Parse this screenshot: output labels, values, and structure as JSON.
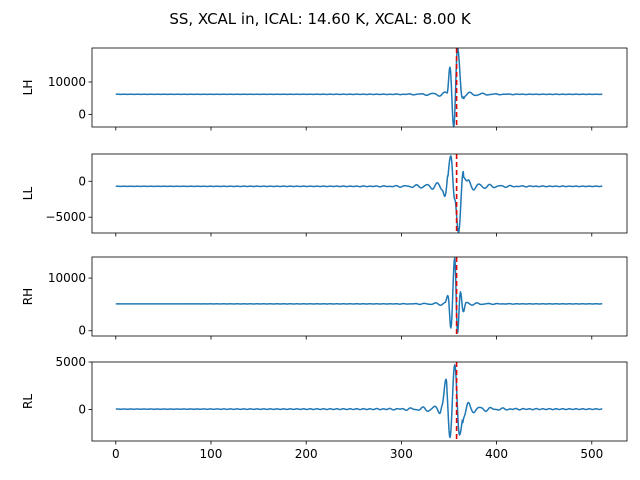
{
  "chart_data": {
    "type": "line",
    "title": "SS, XCAL in, ICAL: 14.60 K, XCAL: 8.00 K",
    "x_ticks": [
      0,
      100,
      200,
      300,
      400,
      500
    ],
    "xlim": [
      -25,
      537
    ],
    "x_range": [
      0,
      511
    ],
    "marker_x": 358,
    "line_color": "#1f77b4",
    "marker_color": "#e00000",
    "panels": [
      {
        "ylabel": "LH",
        "ylim": [
          -3900,
          20500
        ],
        "y_ticks": [
          0,
          10000
        ],
        "y_tick_labels": [
          "0",
          "10000"
        ],
        "baseline": 6200,
        "center": 357,
        "peaks": [
          {
            "x": 351,
            "y": 14500
          },
          {
            "x": 355,
            "y": -3800
          },
          {
            "x": 359,
            "y": 20500
          },
          {
            "x": 364,
            "y": 5000
          }
        ],
        "ripple_amp": 1300,
        "ripple_period": 13,
        "ripple_decay": 18,
        "ripple_phase": 0.6,
        "far_amp": 80
      },
      {
        "ylabel": "LL",
        "ylim": [
          -7200,
          3800
        ],
        "y_ticks": [
          -5000,
          0
        ],
        "y_tick_labels": [
          "−5000",
          "0"
        ],
        "baseline": -700,
        "center": 357,
        "peaks": [
          {
            "x": 346,
            "y": -2000
          },
          {
            "x": 352,
            "y": 3500
          },
          {
            "x": 356,
            "y": -2500
          },
          {
            "x": 360,
            "y": -7100
          },
          {
            "x": 365,
            "y": 1300
          },
          {
            "x": 370,
            "y": -400
          }
        ],
        "ripple_amp": 1100,
        "ripple_period": 11,
        "ripple_decay": 22,
        "ripple_phase": 0.0,
        "far_amp": 60
      },
      {
        "ylabel": "RH",
        "ylim": [
          -1000,
          14000
        ],
        "y_ticks": [
          0,
          10000
        ],
        "y_tick_labels": [
          "0",
          "10000"
        ],
        "baseline": 5100,
        "center": 357,
        "peaks": [
          {
            "x": 349,
            "y": 6600
          },
          {
            "x": 352,
            "y": 500
          },
          {
            "x": 356,
            "y": 13800
          },
          {
            "x": 359,
            "y": -400
          },
          {
            "x": 362,
            "y": 7400
          },
          {
            "x": 365,
            "y": 3600
          }
        ],
        "ripple_amp": 600,
        "ripple_period": 11,
        "ripple_decay": 17,
        "ripple_phase": 1.2,
        "far_amp": 40
      },
      {
        "ylabel": "RL",
        "ylim": [
          -3300,
          5000
        ],
        "y_ticks": [
          0,
          5000
        ],
        "y_tick_labels": [
          "0",
          "5000"
        ],
        "baseline": 50,
        "center": 356,
        "peaks": [
          {
            "x": 343,
            "y": 600
          },
          {
            "x": 347,
            "y": 2700
          },
          {
            "x": 351,
            "y": -3000
          },
          {
            "x": 356,
            "y": 4700
          },
          {
            "x": 361,
            "y": -2600
          },
          {
            "x": 366,
            "y": -400
          },
          {
            "x": 370,
            "y": 300
          }
        ],
        "ripple_amp": 900,
        "ripple_period": 12,
        "ripple_decay": 20,
        "ripple_phase": 0.3,
        "far_amp": 70
      }
    ]
  }
}
